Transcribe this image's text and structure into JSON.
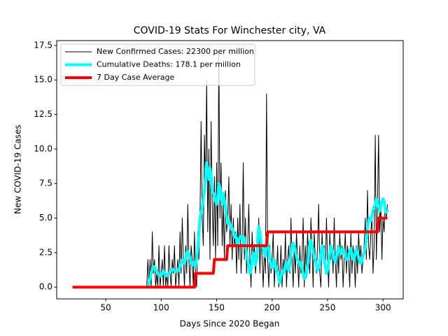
{
  "chart_data": {
    "type": "line",
    "title": "COVID-19 Stats For Winchester city, VA",
    "x_label": "Days Since 2020 Began",
    "y_label": "New COVID-19 Cases",
    "xlim": [
      5.8,
      318.2
    ],
    "ylim": [
      -0.85,
      17.85
    ],
    "xticks": [
      50,
      100,
      150,
      200,
      250,
      300
    ],
    "yticks": [
      {
        "value": 0,
        "label": "0.0"
      },
      2.5,
      {
        "value": 5,
        "label": "5.0"
      },
      7.5,
      {
        "value": 10,
        "label": "10.0"
      },
      12.5,
      {
        "value": 15,
        "label": "15.0"
      },
      17.5
    ],
    "legend": "upper left",
    "x": [
      20,
      21,
      22,
      23,
      24,
      25,
      26,
      27,
      28,
      29,
      30,
      31,
      32,
      33,
      34,
      35,
      36,
      37,
      38,
      39,
      40,
      41,
      42,
      43,
      44,
      45,
      46,
      47,
      48,
      49,
      50,
      51,
      52,
      53,
      54,
      55,
      56,
      57,
      58,
      59,
      60,
      61,
      62,
      63,
      64,
      65,
      66,
      67,
      68,
      69,
      70,
      71,
      72,
      73,
      74,
      75,
      76,
      77,
      78,
      79,
      80,
      81,
      82,
      83,
      84,
      85,
      86,
      87,
      88,
      89,
      90,
      91,
      92,
      93,
      94,
      95,
      96,
      97,
      98,
      99,
      100,
      101,
      102,
      103,
      104,
      105,
      106,
      107,
      108,
      109,
      110,
      111,
      112,
      113,
      114,
      115,
      116,
      117,
      118,
      119,
      120,
      121,
      122,
      123,
      124,
      125,
      126,
      127,
      128,
      129,
      130,
      131,
      132,
      133,
      134,
      135,
      136,
      137,
      138,
      139,
      140,
      141,
      142,
      143,
      144,
      145,
      146,
      147,
      148,
      149,
      150,
      151,
      152,
      153,
      154,
      155,
      156,
      157,
      158,
      159,
      160,
      161,
      162,
      163,
      164,
      165,
      166,
      167,
      168,
      169,
      170,
      171,
      172,
      173,
      174,
      175,
      176,
      177,
      178,
      179,
      180,
      181,
      182,
      183,
      184,
      185,
      186,
      187,
      188,
      189,
      190,
      191,
      192,
      193,
      194,
      195,
      196,
      197,
      198,
      199,
      200,
      201,
      202,
      203,
      204,
      205,
      206,
      207,
      208,
      209,
      210,
      211,
      212,
      213,
      214,
      215,
      216,
      217,
      218,
      219,
      220,
      221,
      222,
      223,
      224,
      225,
      226,
      227,
      228,
      229,
      230,
      231,
      232,
      233,
      234,
      235,
      236,
      237,
      238,
      239,
      240,
      241,
      242,
      243,
      244,
      245,
      246,
      247,
      248,
      249,
      250,
      251,
      252,
      253,
      254,
      255,
      256,
      257,
      258,
      259,
      260,
      261,
      262,
      263,
      264,
      265,
      266,
      267,
      268,
      269,
      270,
      271,
      272,
      273,
      274,
      275,
      276,
      277,
      278,
      279,
      280,
      281,
      282,
      283,
      284,
      285,
      286,
      287,
      288,
      289,
      290,
      291,
      292,
      293,
      294,
      295,
      296,
      297,
      298,
      299,
      300,
      301,
      302,
      303,
      304
    ],
    "series": [
      {
        "name": "New Confirmed Cases: 22300 per million",
        "color": "#000000",
        "width": 1,
        "values": [
          0,
          0,
          0,
          0,
          0,
          0,
          0,
          0,
          0,
          0,
          0,
          0,
          0,
          0,
          0,
          0,
          0,
          0,
          0,
          0,
          0,
          0,
          0,
          0,
          0,
          0,
          0,
          0,
          0,
          0,
          0,
          0,
          0,
          0,
          0,
          0,
          0,
          0,
          0,
          0,
          0,
          0,
          0,
          0,
          0,
          0,
          0,
          0,
          0,
          0,
          0,
          0,
          0,
          0,
          0,
          0,
          0,
          0,
          0,
          0,
          0,
          0,
          0,
          0,
          0,
          0,
          0,
          0,
          2,
          0,
          2,
          0,
          4,
          1,
          2,
          0,
          1,
          0,
          3,
          0,
          1,
          2,
          0,
          3,
          0,
          1,
          0,
          3,
          1,
          0,
          2,
          1,
          3,
          0,
          1,
          2,
          0,
          4,
          1,
          5,
          2,
          0,
          3,
          1,
          6,
          2,
          0,
          3,
          2,
          0,
          4,
          1,
          0,
          4,
          2,
          5,
          12,
          5,
          3,
          11,
          7,
          15,
          4,
          10,
          2,
          12,
          6,
          3,
          8,
          2,
          9,
          3,
          17,
          5,
          9,
          3,
          6,
          2,
          7,
          4,
          5,
          8,
          3,
          6,
          2,
          5,
          3,
          4,
          1,
          5,
          2,
          6,
          1,
          3,
          9,
          2,
          5,
          1,
          3,
          6,
          2,
          0,
          4,
          2,
          3,
          1,
          2,
          2,
          5,
          1,
          4,
          2,
          0,
          3,
          1,
          14,
          2,
          0,
          3,
          1,
          2,
          4,
          0,
          2,
          1,
          3,
          0,
          1,
          3,
          0,
          2,
          1,
          4,
          0,
          2,
          3,
          1,
          5,
          2,
          0,
          3,
          1,
          4,
          2,
          0,
          3,
          1,
          2,
          5,
          0,
          3,
          1,
          4,
          2,
          1,
          5,
          3,
          0,
          4,
          2,
          1,
          3,
          6,
          1,
          0,
          4,
          2,
          3,
          1,
          5,
          2,
          0,
          4,
          2,
          3,
          1,
          5,
          2,
          0,
          3,
          1,
          4,
          2,
          3,
          0,
          2,
          4,
          1,
          3,
          2,
          0,
          4,
          1,
          3,
          2,
          0,
          3,
          1,
          4,
          2,
          3,
          1,
          2,
          3,
          5,
          2,
          7,
          3,
          2,
          4,
          5,
          1,
          3,
          11,
          2,
          6,
          11,
          4,
          6,
          2,
          5,
          4,
          6,
          5,
          6
        ]
      },
      {
        "name": "Cumulative Deaths: 178.1 per million",
        "color": "#00ffff",
        "width": 4,
        "values": [
          null,
          null,
          null,
          null,
          null,
          null,
          null,
          null,
          null,
          null,
          null,
          null,
          null,
          null,
          null,
          null,
          null,
          null,
          null,
          null,
          null,
          null,
          null,
          null,
          null,
          null,
          null,
          null,
          null,
          null,
          null,
          null,
          null,
          null,
          null,
          null,
          null,
          null,
          null,
          null,
          null,
          null,
          null,
          null,
          null,
          null,
          null,
          null,
          null,
          null,
          null,
          null,
          null,
          null,
          null,
          null,
          null,
          null,
          null,
          null,
          null,
          null,
          null,
          null,
          null,
          null,
          null,
          null,
          0,
          0.3,
          0.6,
          1,
          1.3,
          1.5,
          1.5,
          1.3,
          1.1,
          1,
          0.9,
          0.8,
          0.8,
          1,
          1.2,
          1,
          0.9,
          0.8,
          0.9,
          1,
          1.1,
          1.2,
          1.3,
          1.3,
          1.2,
          1.1,
          1.2,
          1.3,
          1.2,
          1.5,
          1.8,
          2,
          1.8,
          1.7,
          2,
          2.5,
          2.6,
          2.4,
          2.1,
          1.8,
          1.6,
          1.7,
          1.8,
          1.5,
          2,
          2.8,
          3.8,
          5,
          5.4,
          5.8,
          6.4,
          7,
          8,
          9,
          8.6,
          7.8,
          8.6,
          8.2,
          7,
          6.8,
          6.5,
          6.2,
          6,
          6.6,
          7.5,
          7.2,
          6.4,
          6,
          6.8,
          6.3,
          5.8,
          5,
          4.6,
          4.8,
          4.6,
          4.2,
          4.3,
          4,
          3.6,
          3.8,
          3.4,
          3,
          3.4,
          3.6,
          3.7,
          3.6,
          3.2,
          3.6,
          3,
          2.4,
          2,
          1.5,
          1,
          1.2,
          2,
          2.5,
          2.1,
          1.6,
          1.9,
          3.5,
          4.4,
          4,
          3.2,
          3,
          2.8,
          2.4,
          2.2,
          3.6,
          3.2,
          2.8,
          2.2,
          1.6,
          1.4,
          1.5,
          2,
          1.6,
          1.2,
          1,
          0.6,
          0.3,
          0.8,
          1.2,
          1,
          1.1,
          1.6,
          1.8,
          1.4,
          1.2,
          1.6,
          2.4,
          3,
          3.2,
          2.9,
          2.6,
          2.2,
          2,
          1.8,
          1.6,
          1.8,
          1.4,
          1,
          0.6,
          0.7,
          1,
          1.6,
          2.4,
          3.2,
          3.4,
          3,
          2.6,
          2.2,
          2,
          1.6,
          1.2,
          1.4,
          1.8,
          2.5,
          3,
          2.8,
          2,
          1.5,
          1,
          1.2,
          1.8,
          2.4,
          3,
          2.8,
          2.4,
          2,
          1.8,
          2.2,
          2.6,
          2.9,
          2.6,
          2.4,
          2.5,
          2.8,
          2.6,
          2.2,
          2,
          2,
          2.2,
          2.6,
          2.8,
          2.4,
          2,
          2,
          2.5,
          2.8,
          2.4,
          2.2,
          1.8,
          1.7,
          1.9,
          2.3,
          2.5,
          2.8,
          3.5,
          4.2,
          4.8,
          5,
          4.8,
          5.2,
          5.6,
          5.8,
          6,
          6.4,
          6.2,
          5.8,
          5.5,
          5.8,
          6.2,
          6.4,
          6.2,
          5.6,
          5.4,
          5.6
        ]
      },
      {
        "name": "7 Day Case Average",
        "color": "#ff0000",
        "width": 4,
        "values": [
          0,
          0,
          0,
          0,
          0,
          0,
          0,
          0,
          0,
          0,
          0,
          0,
          0,
          0,
          0,
          0,
          0,
          0,
          0,
          0,
          0,
          0,
          0,
          0,
          0,
          0,
          0,
          0,
          0,
          0,
          0,
          0,
          0,
          0,
          0,
          0,
          0,
          0,
          0,
          0,
          0,
          0,
          0,
          0,
          0,
          0,
          0,
          0,
          0,
          0,
          0,
          0,
          0,
          0,
          0,
          0,
          0,
          0,
          0,
          0,
          0,
          0,
          0,
          0,
          0,
          0,
          0,
          0,
          0,
          0,
          0,
          0,
          0,
          0,
          0,
          0,
          0,
          0,
          0,
          0,
          0,
          0,
          0,
          0,
          0,
          0,
          0,
          0,
          0,
          0,
          0,
          0,
          0,
          0,
          0,
          0,
          0,
          0,
          0,
          0,
          0,
          0,
          0,
          0,
          0,
          0,
          0,
          0,
          0,
          0,
          0,
          1,
          1,
          1,
          1,
          1,
          1,
          1,
          1,
          1,
          1,
          1,
          1,
          1,
          1,
          1,
          1,
          1,
          2,
          2,
          2,
          2,
          2,
          2,
          2,
          2,
          2,
          2,
          2,
          2,
          3,
          3,
          3,
          3,
          3,
          3,
          3,
          3,
          3,
          3,
          3,
          3,
          3,
          3,
          3,
          3,
          3,
          3,
          3,
          3,
          3,
          3,
          3,
          3,
          3,
          3,
          3,
          3,
          3,
          3,
          3,
          3,
          3,
          3,
          3,
          3,
          4,
          4,
          4,
          4,
          4,
          4,
          4,
          4,
          4,
          4,
          4,
          4,
          4,
          4,
          4,
          4,
          4,
          4,
          4,
          4,
          4,
          4,
          4,
          4,
          4,
          4,
          4,
          4,
          4,
          4,
          4,
          4,
          4,
          4,
          4,
          4,
          4,
          4,
          4,
          4,
          4,
          4,
          4,
          4,
          4,
          4,
          4,
          4,
          4,
          4,
          4,
          4,
          4,
          4,
          4,
          4,
          4,
          4,
          4,
          4,
          4,
          4,
          4,
          4,
          4,
          4,
          4,
          4,
          4,
          4,
          4,
          4,
          4,
          4,
          4,
          4,
          4,
          4,
          4,
          4,
          4,
          4,
          4,
          4,
          4,
          4,
          4,
          4,
          4,
          4,
          4,
          4,
          4,
          4,
          4,
          4,
          4,
          4,
          4,
          4,
          5,
          5,
          5,
          5,
          5,
          5,
          5,
          5,
          5
        ]
      }
    ]
  }
}
